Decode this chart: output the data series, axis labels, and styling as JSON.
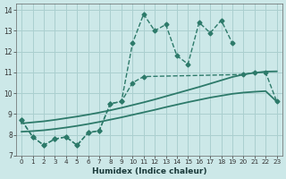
{
  "xlabel": "Humidex (Indice chaleur)",
  "bg_color": "#cce8e8",
  "grid_color": "#aacfcf",
  "line_color": "#2d7a6a",
  "xlim": [
    -0.5,
    23.5
  ],
  "ylim": [
    7,
    14.3
  ],
  "xticks": [
    0,
    1,
    2,
    3,
    4,
    5,
    6,
    7,
    8,
    9,
    10,
    11,
    12,
    13,
    14,
    15,
    16,
    17,
    18,
    19,
    20,
    21,
    22,
    23
  ],
  "yticks": [
    7,
    8,
    9,
    10,
    11,
    12,
    13,
    14
  ],
  "series1_x": [
    0,
    1,
    2,
    3,
    4,
    5,
    6,
    7,
    8,
    9,
    10,
    11,
    12,
    13,
    14,
    15,
    16,
    17,
    18,
    19
  ],
  "series1_y": [
    8.7,
    7.9,
    7.5,
    7.8,
    7.9,
    7.5,
    8.1,
    8.2,
    9.5,
    9.6,
    12.4,
    13.8,
    13.0,
    13.3,
    11.8,
    11.4,
    13.4,
    12.9,
    13.5,
    12.4
  ],
  "series2_x": [
    0,
    1,
    2,
    3,
    4,
    5,
    6,
    7,
    8,
    9,
    10,
    11,
    20,
    21,
    22,
    23
  ],
  "series2_y": [
    8.7,
    7.9,
    7.5,
    7.8,
    7.9,
    7.5,
    8.1,
    8.2,
    9.5,
    9.6,
    10.5,
    10.8,
    10.9,
    11.0,
    11.0,
    9.6
  ],
  "curve1_x": [
    0,
    1,
    2,
    3,
    4,
    5,
    6,
    7,
    8,
    9,
    10,
    11,
    12,
    13,
    14,
    15,
    16,
    17,
    18,
    19,
    20,
    21,
    22,
    23
  ],
  "curve1_y": [
    8.55,
    8.6,
    8.65,
    8.72,
    8.8,
    8.88,
    8.97,
    9.07,
    9.18,
    9.3,
    9.43,
    9.56,
    9.7,
    9.85,
    10.0,
    10.15,
    10.3,
    10.46,
    10.62,
    10.78,
    10.9,
    10.98,
    11.04,
    11.05
  ],
  "curve2_x": [
    0,
    1,
    2,
    3,
    4,
    5,
    6,
    7,
    8,
    9,
    10,
    11,
    12,
    13,
    14,
    15,
    16,
    17,
    18,
    19,
    20,
    21,
    22,
    23
  ],
  "curve2_y": [
    8.15,
    8.18,
    8.22,
    8.28,
    8.35,
    8.43,
    8.52,
    8.62,
    8.73,
    8.84,
    8.96,
    9.08,
    9.2,
    9.33,
    9.45,
    9.57,
    9.68,
    9.79,
    9.88,
    9.97,
    10.03,
    10.07,
    10.1,
    9.6
  ]
}
